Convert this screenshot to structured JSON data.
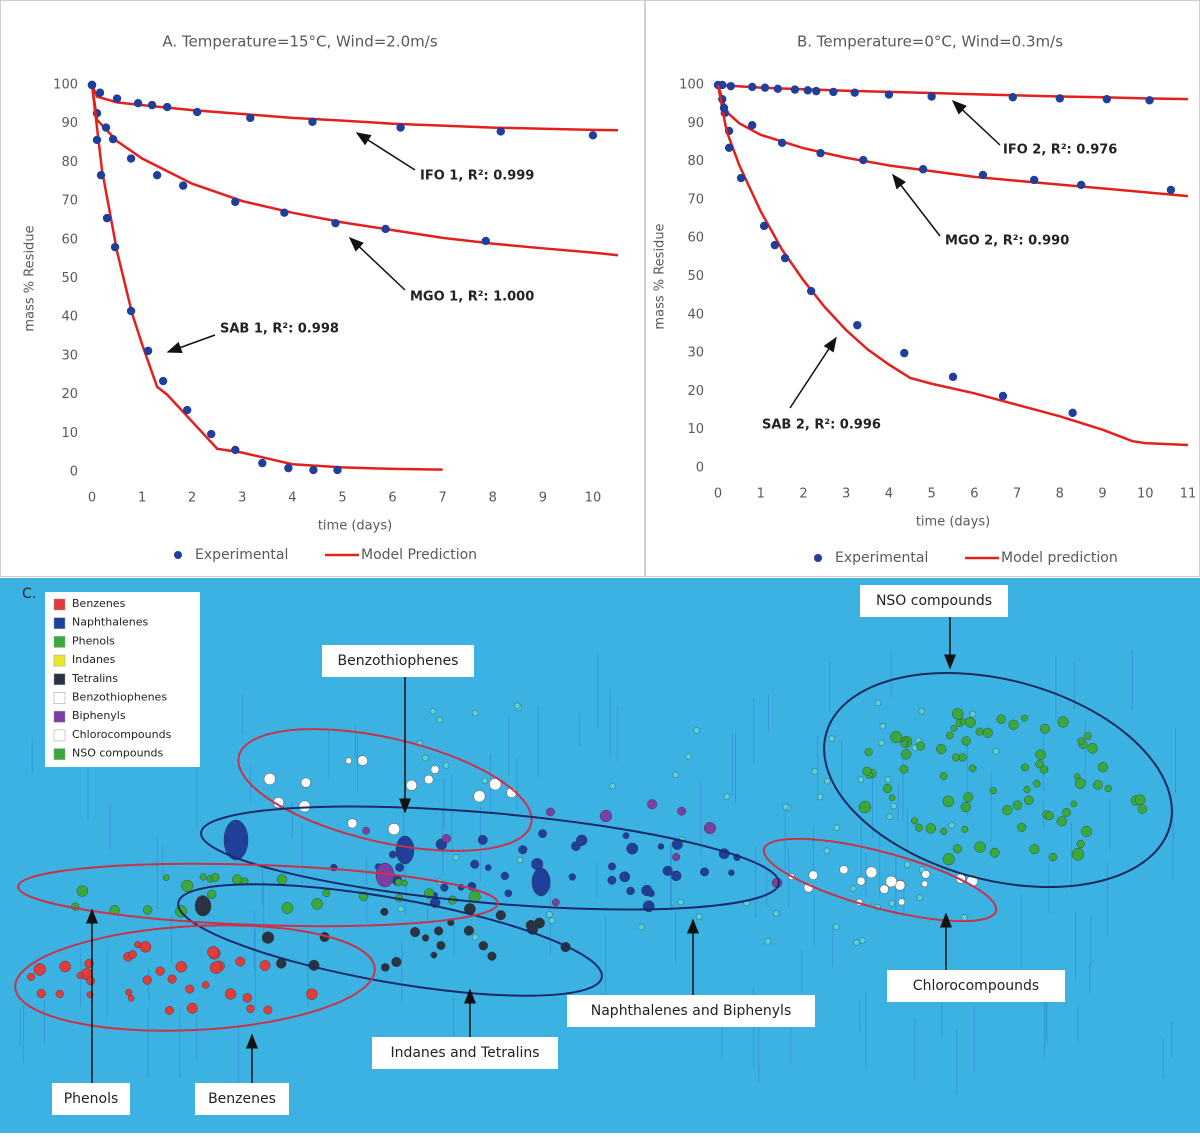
{
  "chart_data": [
    {
      "type": "line",
      "title": "A. Temperature=15°C, Wind=2.0m/s",
      "xlabel": "time (days)",
      "ylabel": "mass % Residue",
      "xlim": [
        0,
        10.5
      ],
      "xticks": [
        0,
        1,
        2,
        3,
        4,
        5,
        6,
        7,
        8,
        9,
        10
      ],
      "ylim": [
        0,
        100
      ],
      "yticks": [
        0,
        10,
        20,
        30,
        40,
        50,
        60,
        70,
        80,
        90,
        100
      ],
      "grid": false,
      "legend": [
        {
          "name": "Experimental",
          "color": "#1f3f9a"
        },
        {
          "name": "Model Prediction",
          "color": "#e3201c"
        }
      ],
      "series": [
        {
          "name": "IFO 1,  R²: 0.999",
          "experimental": {
            "x": [
              0,
              0.16,
              0.5,
              0.92,
              1.2,
              1.5,
              2.1,
              3.16,
              4.4,
              6.16,
              8.16,
              10
            ],
            "y": [
              100,
              98,
              96.5,
              95.3,
              94.8,
              94.3,
              93,
              91.5,
              90.5,
              89,
              88,
              87
            ]
          },
          "model": {
            "x": [
              0,
              0.1,
              0.5,
              1,
              2,
              3,
              4,
              5,
              6,
              7,
              8,
              9,
              10,
              10.5
            ],
            "y": [
              100,
              97,
              95.5,
              94.8,
              93.5,
              92.5,
              91.5,
              90.8,
              90,
              89.5,
              89,
              88.7,
              88.4,
              88.3
            ]
          }
        },
        {
          "name": "MGO 1,  R²: 1.000",
          "experimental": {
            "x": [
              0,
              0.1,
              0.28,
              0.42,
              0.78,
              1.3,
              1.82,
              2.86,
              3.84,
              4.86,
              5.86,
              7.86
            ],
            "y": [
              100,
              92.7,
              89,
              86,
              81,
              76.7,
              74,
              69.8,
              67,
              64.3,
              62.8,
              59.7
            ]
          },
          "model": {
            "x": [
              0,
              0.1,
              0.5,
              1,
              2,
              3,
              4,
              5,
              6,
              7,
              8,
              9,
              10,
              10.5
            ],
            "y": [
              100,
              91,
              85.5,
              81,
              74.5,
              70,
              67,
              64.5,
              62.5,
              60.5,
              59,
              57.8,
              56.7,
              56
            ]
          }
        },
        {
          "name": "SAB 1,  R²: 0.998",
          "experimental": {
            "x": [
              0,
              0.1,
              0.18,
              0.3,
              0.46,
              0.78,
              1.12,
              1.42,
              1.9,
              2.38,
              2.86,
              3.4,
              3.92,
              4.42,
              4.9
            ],
            "y": [
              100,
              85.8,
              76.7,
              65.6,
              58.1,
              41.6,
              31.3,
              23.5,
              16,
              9.8,
              5.7,
              2.3,
              1,
              0.5,
              0.5
            ]
          },
          "model": {
            "x": [
              0,
              0.2,
              0.5,
              0.8,
              1,
              1.3,
              1.5,
              2,
              2.5,
              3,
              3.5,
              4,
              5,
              6,
              7
            ],
            "y": [
              100,
              78,
              57,
              41,
              33,
              22,
              20,
              13,
              6,
              5,
              3.5,
              2,
              1.2,
              0.8,
              0.6
            ]
          }
        }
      ]
    },
    {
      "type": "line",
      "title": "B. Temperature=0°C, Wind=0.3m/s",
      "xlabel": "time (days)",
      "ylabel": "mass % Residue",
      "xlim": [
        0,
        11
      ],
      "xticks": [
        0,
        1,
        2,
        3,
        4,
        5,
        6,
        7,
        8,
        9,
        10,
        11
      ],
      "ylim": [
        0,
        100
      ],
      "yticks": [
        0,
        10,
        20,
        30,
        40,
        50,
        60,
        70,
        80,
        90,
        100
      ],
      "grid": false,
      "legend": [
        {
          "name": "Experimental",
          "color": "#1f3f9a"
        },
        {
          "name": "Model prediction",
          "color": "#e3201c"
        }
      ],
      "series": [
        {
          "name": "IFO 2,  R²: 0.976",
          "experimental": {
            "x": [
              0,
              0.1,
              0.3,
              0.8,
              1.1,
              1.4,
              1.8,
              2.1,
              2.3,
              2.7,
              3.2,
              4,
              5,
              6.9,
              8,
              9.1,
              10.1
            ],
            "y": [
              100,
              100,
              99.7,
              99.5,
              99.3,
              99,
              98.8,
              98.6,
              98.4,
              98.2,
              98,
              97.5,
              97,
              96.8,
              96.5,
              96.3,
              96
            ]
          },
          "model": {
            "x": [
              0,
              1,
              2,
              3,
              4,
              5,
              6,
              7,
              8,
              9,
              10,
              11
            ],
            "y": [
              100,
              99.3,
              98.9,
              98.5,
              98.2,
              97.9,
              97.6,
              97.3,
              97,
              96.8,
              96.5,
              96.3
            ]
          }
        },
        {
          "name": "MGO 2,  R²: 0.990",
          "experimental": {
            "x": [
              0.1,
              0.16,
              0.26,
              0.8,
              1.5,
              2.4,
              3.4,
              4.8,
              6.2,
              7.4,
              8.5,
              10.6
            ],
            "y": [
              96.3,
              92.7,
              88,
              89.5,
              84.9,
              82.2,
              80.4,
              78,
              76.5,
              75.2,
              73.9,
              72.6
            ]
          },
          "model": {
            "x": [
              0,
              0.2,
              0.5,
              1,
              2,
              3,
              4,
              5,
              6,
              7,
              8,
              9,
              10,
              11
            ],
            "y": [
              100,
              93,
              90,
              87,
              83.5,
              81,
              79,
              77.5,
              76,
              75,
              74,
              73,
              72,
              71
            ]
          }
        },
        {
          "name": "SAB 2,  R²: 0.996",
          "experimental": {
            "x": [
              0.14,
              0.26,
              0.54,
              1.08,
              1.33,
              1.57,
              2.18,
              3.26,
              4.36,
              5.5,
              6.67,
              8.3
            ],
            "y": [
              94,
              83.6,
              75.7,
              63.2,
              58.2,
              54.8,
              46.2,
              37.3,
              30,
              23.8,
              18.8,
              14.4
            ]
          },
          "model": {
            "x": [
              0,
              0.2,
              0.5,
              1,
              1.5,
              2,
              2.5,
              3,
              3.5,
              4,
              4.5,
              5,
              6,
              7,
              8,
              9,
              9.7,
              10,
              11
            ],
            "y": [
              100,
              88,
              79,
              67,
              57,
              49,
              42,
              36,
              31,
              27,
              23.5,
              22,
              19.5,
              16.5,
              13.5,
              10,
              7,
              6.5,
              6
            ]
          }
        }
      ]
    }
  ],
  "panel_c": {
    "label": "C.",
    "legend": [
      {
        "name": "Benzenes",
        "color": "#e23b3b"
      },
      {
        "name": "Naphthalenes",
        "color": "#1f3f9a"
      },
      {
        "name": "Phenols",
        "color": "#3aa83a"
      },
      {
        "name": "Indanes",
        "color": "#e8e82a"
      },
      {
        "name": "Tetralins",
        "color": "#2a3340"
      },
      {
        "name": "Benzothiophenes",
        "color": "#ffffff"
      },
      {
        "name": "Biphenyls",
        "color": "#7a3fa0"
      },
      {
        "name": "Chlorocompounds",
        "color": "#ffffff"
      },
      {
        "name": "NSO compounds",
        "color": "#3aa83a"
      }
    ],
    "callouts": [
      "NSO compounds",
      "Benzothiophenes",
      "Naphthalenes and Biphenyls",
      "Chlorocompounds",
      "Indanes and Tetralins",
      "Phenols",
      "Benzenes"
    ]
  }
}
